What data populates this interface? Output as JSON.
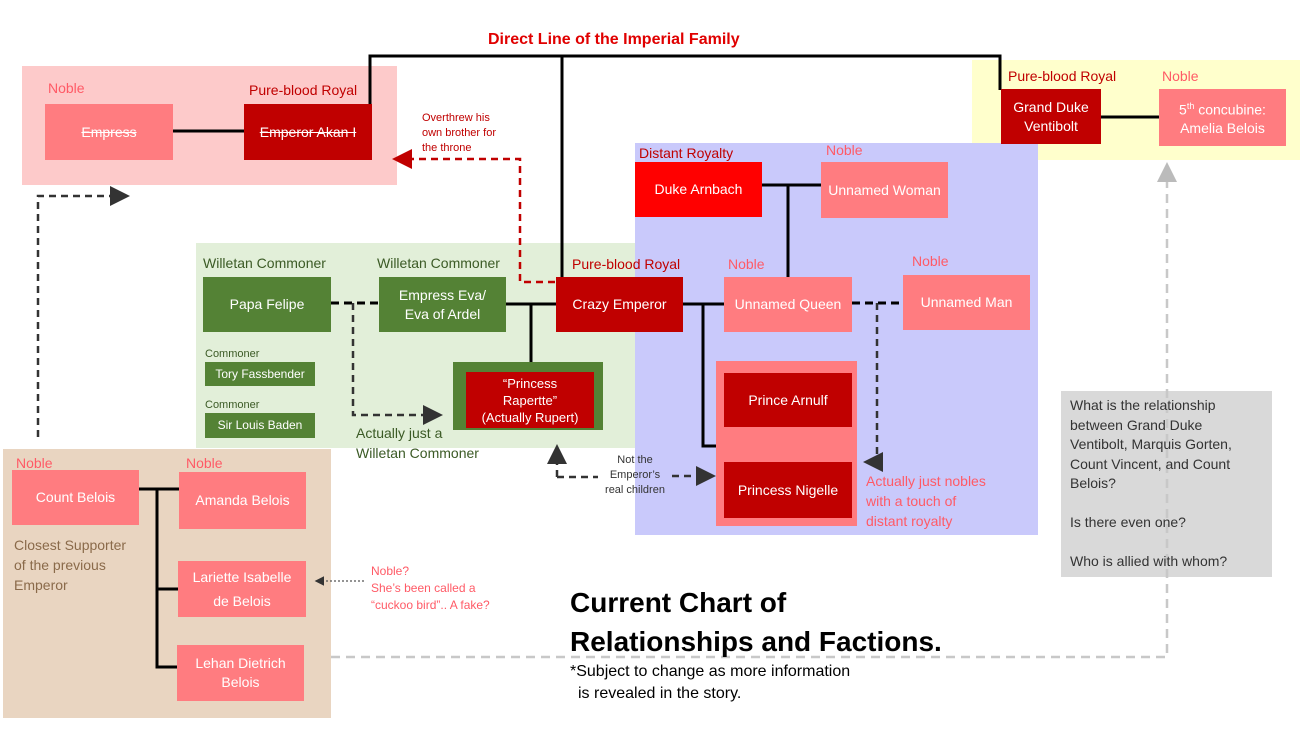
{
  "title": "Direct Line of the Imperial Family",
  "colors": {
    "pure_blood_royal": "#c00000",
    "noble": "#ff7c80",
    "distant_royalty": "#ff0000",
    "commoner": "#548235",
    "label_red": "#c00000",
    "label_pink": "#ff5a66"
  },
  "labels": {
    "noble": "Noble",
    "pure_blood_royal": "Pure-blood Royal",
    "distant_royalty": "Distant Royalty",
    "willetan_commoner": "Willetan Commoner",
    "commoner": "Commoner"
  },
  "imperial_group": {
    "empress": "Empress",
    "emperor": "Emperor Akan I",
    "note": [
      "Overthrew his",
      "own brother for",
      "the throne"
    ]
  },
  "grand_duke_group": {
    "grand_duke": [
      "Grand Duke",
      "Ventibolt"
    ],
    "concubine_ord": "5",
    "concubine_sup": "th",
    "concubine": " concubine:",
    "concubine_name": "Amelia Belois"
  },
  "arnbach_group": {
    "duke": "Duke Arnbach",
    "woman": "Unnamed Woman",
    "queen": "Unnamed Queen",
    "man": "Unnamed Man",
    "prince": "Prince Arnulf",
    "princess": "Princess Nigelle",
    "note": [
      "Actually just nobles",
      "with a touch of",
      "distant royalty"
    ]
  },
  "willetan_group": {
    "papa": "Papa Felipe",
    "eva": [
      "Empress Eva/",
      "Eva of Ardel"
    ],
    "emperor": "Crazy Emperor",
    "tory": "Tory Fassbender",
    "louis": "Sir Louis Baden",
    "rapertte": [
      "“Princess",
      "Rapertte”",
      "(Actually Rupert)"
    ],
    "note": [
      "Actually just a",
      "Willetan Commoner"
    ],
    "children_note": [
      "Not the",
      "Emperor’s",
      "real children"
    ]
  },
  "belois_group": {
    "count": "Count Belois",
    "amanda": "Amanda Belois",
    "lariette": [
      "Lariette Isabelle",
      "de Belois"
    ],
    "lehan": [
      "Lehan Dietrich",
      "Belois"
    ],
    "note": [
      "Closest Supporter",
      "of the previous",
      "Emperor"
    ],
    "lariette_note": [
      "Noble?",
      "She’s been called a",
      "“cuckoo bird”.. A fake?"
    ]
  },
  "question_box": [
    "What is the relationship",
    "between Grand Duke",
    "Ventibolt, Marquis Gorten,",
    "Count Vincent, and Count",
    "Belois?",
    "",
    "Is there even one?",
    "",
    "Who is allied with whom?"
  ],
  "chart_title": [
    "Current Chart of",
    "Relationships and Factions."
  ],
  "chart_note": [
    "*Subject to change as more information",
    "is revealed in the story."
  ]
}
